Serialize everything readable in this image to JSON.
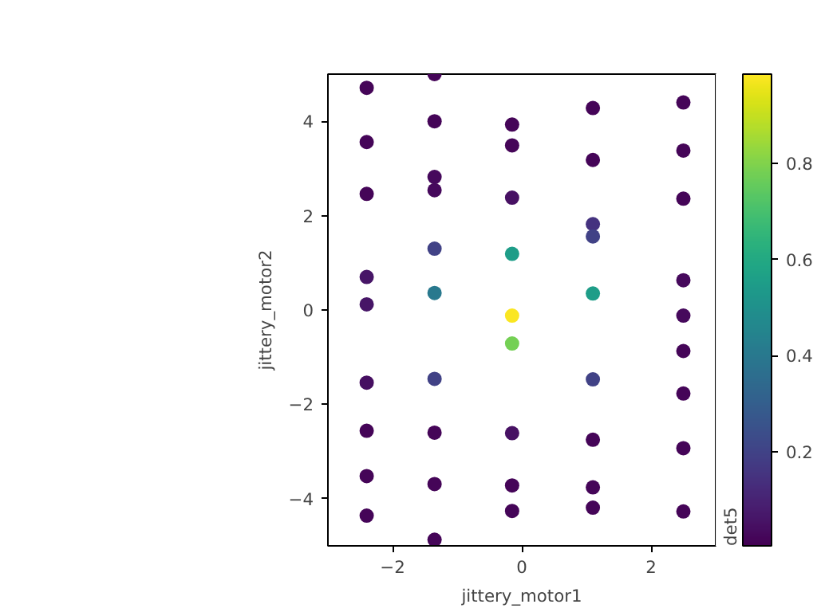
{
  "chart_data": {
    "type": "scatter",
    "xlabel": "jittery_motor1",
    "ylabel": "jittery_motor2",
    "clabel": "det5",
    "x": [
      -2.4,
      -2.4,
      -2.4,
      -2.4,
      -2.4,
      -2.4,
      -2.4,
      -2.4,
      -2.4,
      -1.35,
      -1.35,
      -1.35,
      -1.35,
      -1.35,
      -1.35,
      -1.35,
      -1.35,
      -1.35,
      -1.35,
      -0.15,
      -0.15,
      -0.15,
      -0.15,
      -0.15,
      -0.15,
      -0.15,
      -0.15,
      -0.15,
      1.1,
      1.1,
      1.1,
      1.1,
      1.1,
      1.1,
      1.1,
      1.1,
      1.1,
      2.5,
      2.5,
      2.5,
      2.5,
      2.5,
      2.5,
      2.5,
      2.5,
      2.5
    ],
    "values": [
      4.71,
      3.56,
      2.46,
      0.7,
      0.12,
      -1.54,
      -2.56,
      -3.52,
      -4.36,
      5.0,
      4.0,
      2.82,
      2.54,
      1.3,
      0.36,
      -1.46,
      -2.6,
      -3.69,
      -4.87,
      3.93,
      3.49,
      2.38,
      1.19,
      -0.12,
      -0.71,
      -2.61,
      -3.72,
      -4.26,
      4.28,
      3.18,
      1.82,
      1.56,
      0.35,
      -1.47,
      -2.75,
      -3.76,
      -4.19,
      4.4,
      3.38,
      2.36,
      0.63,
      -0.12,
      -0.87,
      -1.77,
      -2.93,
      -4.27
    ],
    "cvalues": [
      0.02,
      0.02,
      0.02,
      0.06,
      0.06,
      0.04,
      0.02,
      0.02,
      0.02,
      0.02,
      0.02,
      0.03,
      0.03,
      0.2,
      0.4,
      0.2,
      0.02,
      0.02,
      0.02,
      0.02,
      0.02,
      0.05,
      0.55,
      0.98,
      0.78,
      0.05,
      0.02,
      0.02,
      0.02,
      0.02,
      0.15,
      0.2,
      0.55,
      0.2,
      0.02,
      0.02,
      0.02,
      0.02,
      0.02,
      0.02,
      0.03,
      0.03,
      0.02,
      0.02,
      0.02,
      0.02
    ],
    "marker": "circle",
    "grid": false,
    "xlim": [
      -3,
      3
    ],
    "ylim": [
      -5,
      5
    ],
    "xticks": [
      -2,
      0,
      2
    ],
    "yticks": [
      -4,
      -2,
      0,
      2,
      4
    ],
    "clim": [
      0.005,
      0.985
    ],
    "cticks": [
      0.2,
      0.4,
      0.6,
      0.8
    ]
  }
}
